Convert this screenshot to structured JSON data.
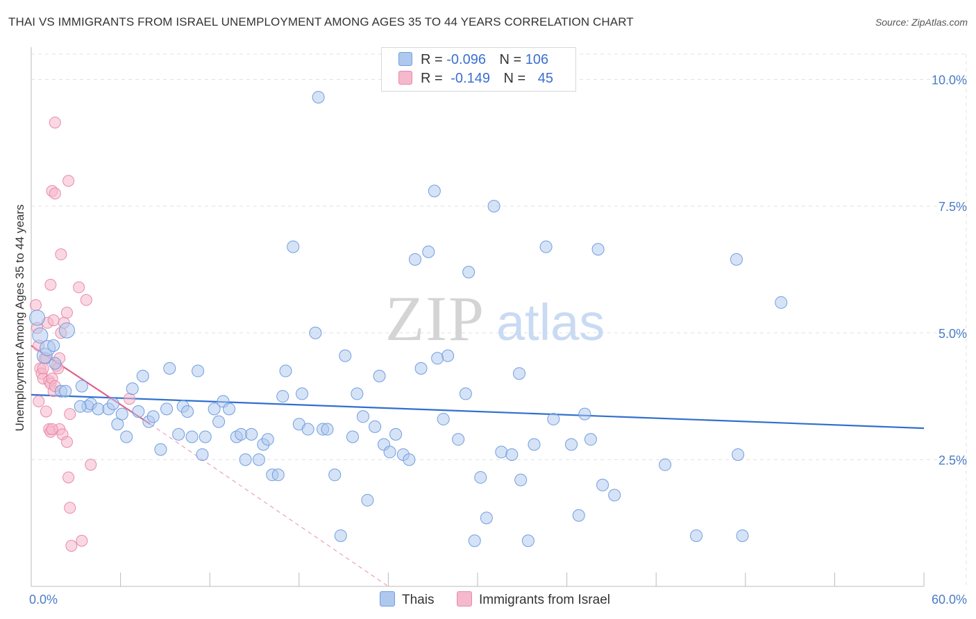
{
  "header": {
    "title": "THAI VS IMMIGRANTS FROM ISRAEL UNEMPLOYMENT AMONG AGES 35 TO 44 YEARS CORRELATION CHART",
    "source": "Source: ZipAtlas.com"
  },
  "legend": {
    "rows": [
      {
        "r_label": "R =",
        "r_value": "-0.096",
        "n_label": "N =",
        "n_value": "106"
      },
      {
        "r_label": "R =",
        "r_value": "-0.149",
        "n_label": "N =",
        "n_value": "45"
      }
    ]
  },
  "watermark": {
    "zip": "ZIP",
    "atlas": "atlas"
  },
  "colors": {
    "thai_fill": "#aec8ee",
    "thai_stroke": "#6f9ee0",
    "thai_line": "#2f6fcf",
    "israel_fill": "#f5b8cc",
    "israel_stroke": "#e88aa8",
    "israel_line": "#e0608a",
    "grid": "#e0e0e0",
    "axis_text": "#4a7bc8"
  },
  "chart_data": {
    "type": "scatter",
    "title": "THAI VS IMMIGRANTS FROM ISRAEL UNEMPLOYMENT AMONG AGES 35 TO 44 YEARS CORRELATION CHART",
    "xlabel": "",
    "ylabel": "Unemployment Among Ages 35 to 44 years",
    "xlim": [
      0,
      60
    ],
    "ylim": [
      0,
      10.5
    ],
    "x_tick_labels": [
      "0.0%",
      "60.0%"
    ],
    "y_ticks": [
      2.5,
      5.0,
      7.5,
      10.0
    ],
    "y_tick_labels": [
      "2.5%",
      "5.0%",
      "7.5%",
      "10.0%"
    ],
    "grid": true,
    "series": [
      {
        "name": "Thais",
        "r": -0.096,
        "n": 106,
        "trend": {
          "x0": 0,
          "y0": 3.78,
          "x1": 60,
          "y1": 3.12
        },
        "points": [
          [
            0.4,
            5.3
          ],
          [
            0.6,
            4.95
          ],
          [
            0.9,
            4.55
          ],
          [
            1.1,
            4.7
          ],
          [
            1.6,
            4.4
          ],
          [
            2.4,
            5.05
          ],
          [
            2.0,
            3.85
          ],
          [
            2.3,
            3.85
          ],
          [
            3.4,
            3.95
          ],
          [
            3.8,
            3.55
          ],
          [
            4.0,
            3.6
          ],
          [
            4.5,
            3.5
          ],
          [
            5.2,
            3.5
          ],
          [
            5.5,
            3.6
          ],
          [
            5.8,
            3.2
          ],
          [
            6.1,
            3.4
          ],
          [
            6.4,
            2.95
          ],
          [
            6.8,
            3.9
          ],
          [
            7.2,
            3.45
          ],
          [
            7.5,
            4.15
          ],
          [
            7.9,
            3.25
          ],
          [
            8.2,
            3.35
          ],
          [
            8.7,
            2.7
          ],
          [
            9.1,
            3.5
          ],
          [
            9.3,
            4.3
          ],
          [
            9.9,
            3.0
          ],
          [
            10.2,
            3.55
          ],
          [
            10.5,
            3.45
          ],
          [
            10.8,
            2.95
          ],
          [
            11.2,
            4.25
          ],
          [
            11.5,
            2.6
          ],
          [
            11.7,
            2.95
          ],
          [
            12.3,
            3.5
          ],
          [
            12.6,
            3.25
          ],
          [
            12.9,
            3.65
          ],
          [
            13.3,
            3.5
          ],
          [
            13.8,
            2.95
          ],
          [
            14.1,
            3.0
          ],
          [
            14.4,
            2.5
          ],
          [
            14.8,
            3.0
          ],
          [
            15.3,
            2.5
          ],
          [
            15.6,
            2.8
          ],
          [
            15.9,
            2.9
          ],
          [
            16.2,
            2.2
          ],
          [
            16.6,
            2.2
          ],
          [
            16.9,
            3.75
          ],
          [
            17.1,
            4.25
          ],
          [
            17.6,
            6.7
          ],
          [
            18.0,
            3.2
          ],
          [
            18.2,
            3.8
          ],
          [
            18.6,
            3.1
          ],
          [
            19.1,
            5.0
          ],
          [
            19.3,
            9.65
          ],
          [
            19.6,
            3.1
          ],
          [
            19.9,
            3.1
          ],
          [
            20.4,
            2.2
          ],
          [
            20.8,
            1.0
          ],
          [
            21.1,
            4.55
          ],
          [
            21.6,
            2.95
          ],
          [
            21.9,
            3.8
          ],
          [
            22.3,
            3.35
          ],
          [
            22.6,
            1.7
          ],
          [
            23.1,
            3.15
          ],
          [
            23.4,
            4.15
          ],
          [
            23.7,
            2.8
          ],
          [
            24.1,
            2.65
          ],
          [
            24.5,
            3.0
          ],
          [
            25.0,
            2.6
          ],
          [
            25.4,
            2.5
          ],
          [
            25.8,
            6.45
          ],
          [
            26.2,
            4.3
          ],
          [
            26.7,
            6.6
          ],
          [
            27.1,
            7.8
          ],
          [
            27.3,
            4.5
          ],
          [
            27.7,
            3.3
          ],
          [
            28.0,
            4.55
          ],
          [
            28.7,
            2.9
          ],
          [
            29.2,
            3.8
          ],
          [
            29.4,
            6.2
          ],
          [
            29.8,
            0.9
          ],
          [
            30.2,
            2.15
          ],
          [
            30.6,
            1.35
          ],
          [
            31.1,
            7.5
          ],
          [
            31.6,
            2.65
          ],
          [
            32.3,
            2.6
          ],
          [
            32.8,
            4.2
          ],
          [
            32.9,
            2.1
          ],
          [
            33.4,
            0.9
          ],
          [
            33.8,
            2.8
          ],
          [
            34.6,
            6.7
          ],
          [
            35.1,
            3.3
          ],
          [
            36.3,
            2.8
          ],
          [
            36.8,
            1.4
          ],
          [
            37.2,
            3.4
          ],
          [
            37.6,
            2.9
          ],
          [
            38.1,
            6.65
          ],
          [
            38.4,
            2.0
          ],
          [
            39.2,
            1.8
          ],
          [
            42.6,
            2.4
          ],
          [
            44.7,
            1.0
          ],
          [
            47.5,
            2.6
          ],
          [
            47.8,
            1.0
          ],
          [
            47.4,
            6.45
          ],
          [
            50.4,
            5.6
          ],
          [
            1.5,
            4.75
          ],
          [
            3.3,
            3.55
          ]
        ]
      },
      {
        "name": "Immigrants from Israel",
        "r": -0.149,
        "n": 45,
        "trend": {
          "x0": 0,
          "y0": 4.75,
          "x1": 8.0,
          "y1": 3.2
        },
        "trend_extended": {
          "x0": 8.0,
          "y0": 3.2,
          "x1": 24.0,
          "y1": 0.0
        },
        "points": [
          [
            0.3,
            5.55
          ],
          [
            0.4,
            5.1
          ],
          [
            0.5,
            4.75
          ],
          [
            0.6,
            4.3
          ],
          [
            0.7,
            4.2
          ],
          [
            0.8,
            4.1
          ],
          [
            0.9,
            4.5
          ],
          [
            1.0,
            4.5
          ],
          [
            1.1,
            5.2
          ],
          [
            1.2,
            4.05
          ],
          [
            1.3,
            4.0
          ],
          [
            1.4,
            4.1
          ],
          [
            1.5,
            3.85
          ],
          [
            1.6,
            3.95
          ],
          [
            1.7,
            4.35
          ],
          [
            1.8,
            4.3
          ],
          [
            1.9,
            4.5
          ],
          [
            2.0,
            5.0
          ],
          [
            0.8,
            4.3
          ],
          [
            1.0,
            3.45
          ],
          [
            1.2,
            3.1
          ],
          [
            1.3,
            3.05
          ],
          [
            1.9,
            3.1
          ],
          [
            2.1,
            3.0
          ],
          [
            2.4,
            2.85
          ],
          [
            2.6,
            3.4
          ],
          [
            1.4,
            3.1
          ],
          [
            1.3,
            5.95
          ],
          [
            1.5,
            5.25
          ],
          [
            2.2,
            5.2
          ],
          [
            2.4,
            5.4
          ],
          [
            3.2,
            5.9
          ],
          [
            3.7,
            5.65
          ],
          [
            2.0,
            6.55
          ],
          [
            1.4,
            7.8
          ],
          [
            1.6,
            7.75
          ],
          [
            2.5,
            8.0
          ],
          [
            1.6,
            9.15
          ],
          [
            2.5,
            2.15
          ],
          [
            2.6,
            1.55
          ],
          [
            2.7,
            0.8
          ],
          [
            3.4,
            0.9
          ],
          [
            4.0,
            2.4
          ],
          [
            6.6,
            3.7
          ],
          [
            0.5,
            3.65
          ]
        ]
      }
    ],
    "legend": [
      "Thais",
      "Immigrants from Israel"
    ]
  },
  "axes": {
    "x_left_label": "0.0%",
    "x_right_label": "60.0%",
    "y_label": "Unemployment Among Ages 35 to 44 years"
  },
  "bottom_legend": {
    "thais": "Thais",
    "israel": "Immigrants from Israel"
  }
}
